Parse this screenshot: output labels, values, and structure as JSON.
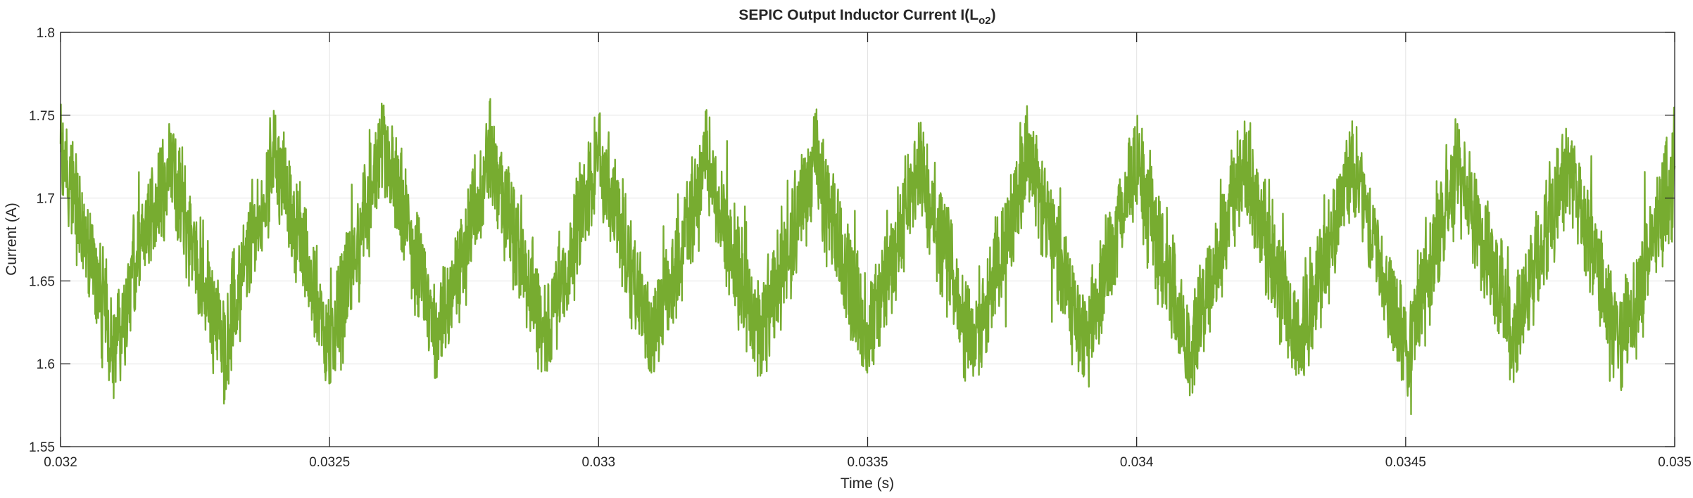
{
  "chart_data": {
    "type": "line",
    "title_main": "SEPIC Output Inductor Current I(L",
    "title_sub": "o2",
    "title_end": ")",
    "xlabel": "Time (s)",
    "ylabel": "Current (A)",
    "xlim": [
      0.032,
      0.035
    ],
    "ylim": [
      1.55,
      1.8
    ],
    "xticks": [
      0.032,
      0.0325,
      0.033,
      0.0335,
      0.034,
      0.0345,
      0.035
    ],
    "xtick_labels": [
      "0.032",
      "0.0325",
      "0.033",
      "0.0335",
      "0.034",
      "0.0345",
      "0.035"
    ],
    "yticks": [
      1.55,
      1.6,
      1.65,
      1.7,
      1.75,
      1.8
    ],
    "ytick_labels": [
      "1.55",
      "1.6",
      "1.65",
      "1.7",
      "1.75",
      "1.8"
    ],
    "grid": true,
    "line_color": "#77AC30",
    "series": [
      {
        "description": "triangular ripple with high-frequency switching noise",
        "x": [
          0.032,
          0.0321,
          0.0322,
          0.0323,
          0.0324,
          0.0325,
          0.0326,
          0.0327,
          0.0328,
          0.0329,
          0.033,
          0.0331,
          0.0332,
          0.0333,
          0.0334,
          0.0335,
          0.0336,
          0.0337,
          0.0338,
          0.0339,
          0.034,
          0.0341,
          0.0342,
          0.0343,
          0.0344,
          0.0345,
          0.0346,
          0.0347,
          0.0348,
          0.0349,
          0.035
        ],
        "y": [
          1.73,
          1.61,
          1.725,
          1.61,
          1.725,
          1.61,
          1.73,
          1.615,
          1.725,
          1.615,
          1.725,
          1.615,
          1.72,
          1.615,
          1.72,
          1.615,
          1.72,
          1.61,
          1.725,
          1.61,
          1.72,
          1.61,
          1.72,
          1.61,
          1.72,
          1.61,
          1.72,
          1.615,
          1.72,
          1.61,
          1.72
        ],
        "ripple_peak_to_peak": 0.1,
        "noise_amplitude": 0.05
      }
    ]
  }
}
